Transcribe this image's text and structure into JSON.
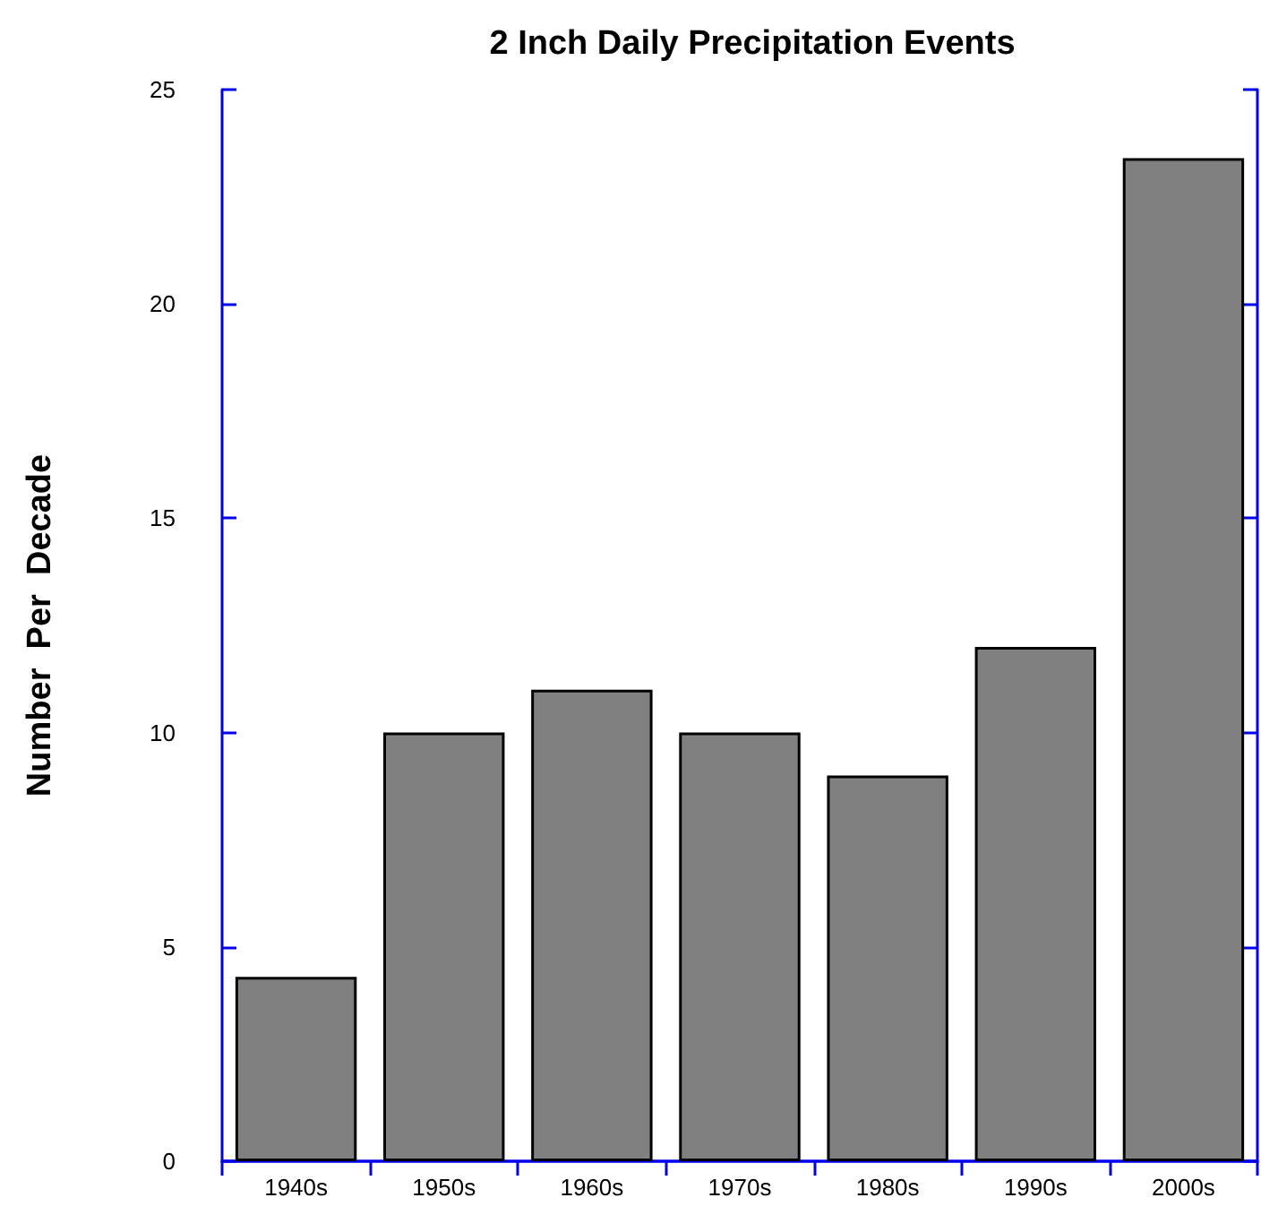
{
  "chart_data": {
    "type": "bar",
    "title": "2 Inch Daily Precipitation Events",
    "ylabel": "Number  Per  Decade",
    "categories": [
      "1940s",
      "1950s",
      "1960s",
      "1970s",
      "1980s",
      "1990s",
      "2000s"
    ],
    "values": [
      4.3,
      10,
      11,
      10,
      9,
      12,
      23.4
    ],
    "color": "#808080",
    "ylim": [
      0,
      25
    ],
    "yticks": [
      0,
      5,
      10,
      15,
      20,
      25
    ],
    "grid": false
  }
}
